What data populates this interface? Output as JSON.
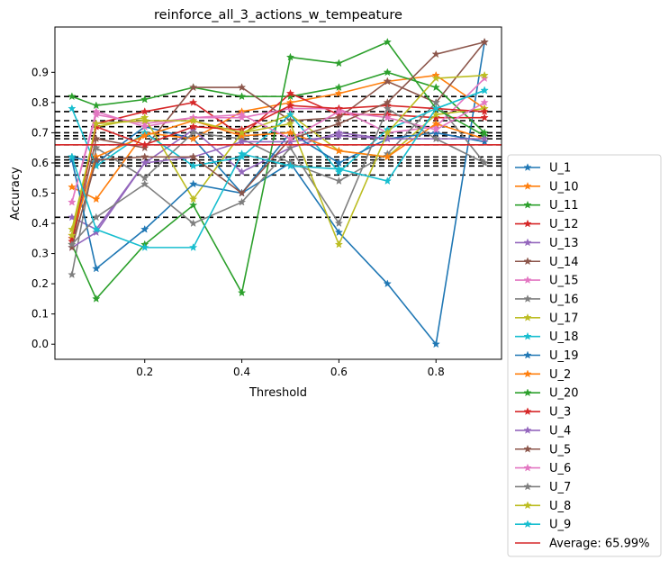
{
  "chart_data": {
    "type": "line",
    "title": "reinforce_all_3_actions_w_tempeature",
    "xlabel": "Threshold",
    "ylabel": "Accuracy",
    "xlim": [
      0.015,
      0.935
    ],
    "ylim": [
      -0.05,
      1.05
    ],
    "xticks": [
      0.2,
      0.4,
      0.6,
      0.8
    ],
    "yticks": [
      0.0,
      0.1,
      0.2,
      0.3,
      0.4,
      0.5,
      0.6,
      0.7,
      0.8,
      0.9
    ],
    "x": [
      0.05,
      0.1,
      0.2,
      0.3,
      0.4,
      0.5,
      0.6,
      0.7,
      0.8,
      0.9
    ],
    "series": [
      {
        "name": "U_1",
        "color": "#1f77b4",
        "values": [
          0.62,
          0.6,
          0.72,
          0.68,
          0.5,
          0.6,
          0.37,
          0.2,
          0.0,
          1.0
        ]
      },
      {
        "name": "U_10",
        "color": "#ff7f0e",
        "values": [
          0.52,
          0.48,
          0.7,
          0.68,
          0.77,
          0.8,
          0.83,
          0.87,
          0.89,
          0.78
        ]
      },
      {
        "name": "U_11",
        "color": "#2ca02c",
        "values": [
          0.82,
          0.79,
          0.81,
          0.85,
          0.82,
          0.82,
          0.85,
          0.9,
          0.85,
          0.7
        ]
      },
      {
        "name": "U_12",
        "color": "#d62728",
        "values": [
          0.35,
          0.73,
          0.77,
          0.8,
          0.69,
          0.83,
          0.76,
          0.76,
          0.75,
          0.75
        ]
      },
      {
        "name": "U_13",
        "color": "#9467bd",
        "values": [
          0.42,
          0.38,
          0.6,
          0.71,
          0.57,
          0.65,
          0.7,
          0.68,
          0.7,
          0.67
        ]
      },
      {
        "name": "U_14",
        "color": "#8c564b",
        "values": [
          0.33,
          0.68,
          0.65,
          0.85,
          0.85,
          0.74,
          0.75,
          0.87,
          0.8,
          1.0
        ]
      },
      {
        "name": "U_15",
        "color": "#e377c2",
        "values": [
          0.47,
          0.77,
          0.72,
          0.75,
          0.75,
          0.78,
          0.78,
          0.7,
          0.72,
          0.88
        ]
      },
      {
        "name": "U_16",
        "color": "#7f7f7f",
        "values": [
          0.23,
          0.65,
          0.55,
          0.7,
          0.68,
          0.6,
          0.54,
          0.63,
          0.8,
          0.6
        ]
      },
      {
        "name": "U_17",
        "color": "#bcbd22",
        "values": [
          0.38,
          0.72,
          0.75,
          0.48,
          0.7,
          0.76,
          0.64,
          0.62,
          0.76,
          0.78
        ]
      },
      {
        "name": "U_18",
        "color": "#17becf",
        "values": [
          0.78,
          0.59,
          0.7,
          0.59,
          0.62,
          0.76,
          0.57,
          0.71,
          0.78,
          0.84
        ]
      },
      {
        "name": "U_19",
        "color": "#1f77b4",
        "values": [
          0.61,
          0.25,
          0.38,
          0.53,
          0.5,
          0.7,
          0.6,
          0.68,
          0.7,
          0.67
        ]
      },
      {
        "name": "U_2",
        "color": "#ff7f0e",
        "values": [
          0.36,
          0.62,
          0.69,
          0.74,
          0.69,
          0.7,
          0.64,
          0.62,
          0.73,
          0.68
        ]
      },
      {
        "name": "U_20",
        "color": "#2ca02c",
        "values": [
          0.33,
          0.15,
          0.33,
          0.46,
          0.17,
          0.95,
          0.93,
          1.0,
          0.78,
          0.69
        ]
      },
      {
        "name": "U_3",
        "color": "#d62728",
        "values": [
          0.34,
          0.72,
          0.66,
          0.72,
          0.71,
          0.79,
          0.78,
          0.79,
          0.78,
          0.77
        ]
      },
      {
        "name": "U_4",
        "color": "#9467bd",
        "values": [
          0.32,
          0.37,
          0.6,
          0.62,
          0.67,
          0.67,
          0.69,
          0.68,
          0.68,
          0.68
        ]
      },
      {
        "name": "U_5",
        "color": "#8c564b",
        "values": [
          0.32,
          0.61,
          0.62,
          0.62,
          0.5,
          0.68,
          0.73,
          0.8,
          0.96,
          1.0
        ]
      },
      {
        "name": "U_6",
        "color": "#e377c2",
        "values": [
          0.47,
          0.76,
          0.73,
          0.75,
          0.76,
          0.68,
          0.77,
          0.75,
          0.71,
          0.8
        ]
      },
      {
        "name": "U_7",
        "color": "#7f7f7f",
        "values": [
          0.33,
          0.42,
          0.53,
          0.4,
          0.47,
          0.65,
          0.4,
          0.78,
          0.68,
          0.6
        ]
      },
      {
        "name": "U_8",
        "color": "#bcbd22",
        "values": [
          0.36,
          0.73,
          0.74,
          0.74,
          0.7,
          0.73,
          0.33,
          0.7,
          0.88,
          0.89
        ]
      },
      {
        "name": "U_9",
        "color": "#17becf",
        "values": [
          0.62,
          0.38,
          0.32,
          0.32,
          0.63,
          0.59,
          0.58,
          0.54,
          0.78,
          0.84
        ]
      }
    ],
    "reference_lines_dashed": [
      0.82,
      0.77,
      0.74,
      0.72,
      0.7,
      0.69,
      0.68,
      0.66,
      0.62,
      0.61,
      0.6,
      0.59,
      0.56,
      0.42
    ],
    "average": {
      "label": "Average: 65.99%",
      "value": 0.6599,
      "color": "#d62728"
    },
    "grid": false,
    "legend_position": "outside-right"
  }
}
